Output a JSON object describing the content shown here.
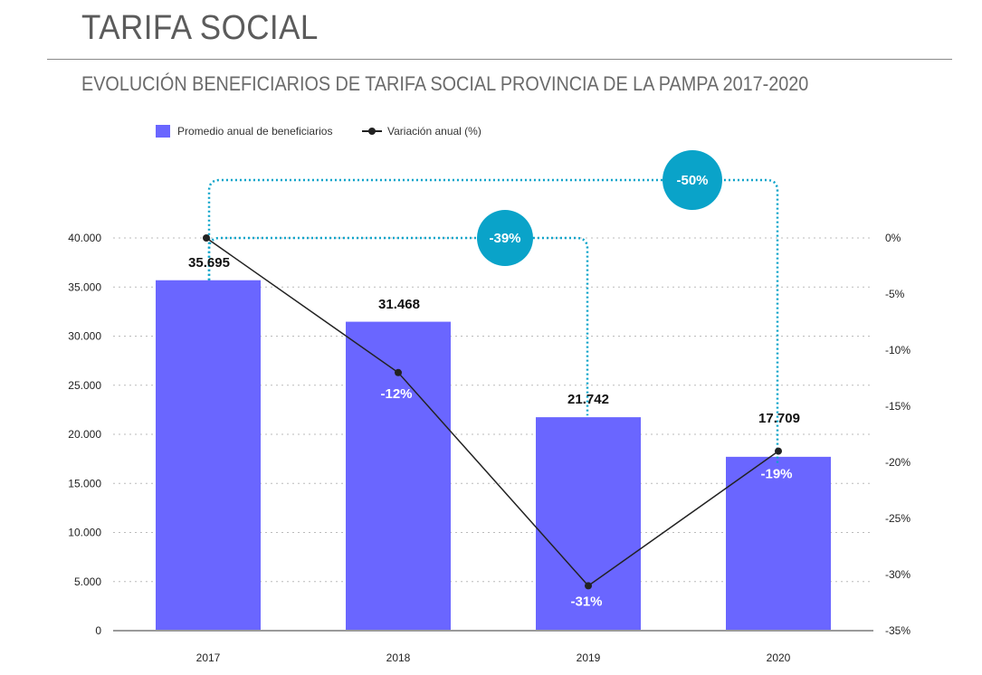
{
  "header": {
    "title": "TARIFA SOCIAL",
    "subtitle": "EVOLUCIÓN BENEFICIARIOS DE TARIFA SOCIAL PROVINCIA DE LA PAMPA 2017-2020"
  },
  "colors": {
    "bar": "#6a66ff",
    "line": "#222222",
    "bubble": "#0aa3c9",
    "grid": "#bbbbbb",
    "axis": "#9a9a9a"
  },
  "chart_data": {
    "type": "bar",
    "categories": [
      "2017",
      "2018",
      "2019",
      "2020"
    ],
    "series": [
      {
        "name": "Promedio anual de beneficiarios",
        "type": "bar",
        "axis": "left",
        "values": [
          35695,
          31468,
          21742,
          17709
        ],
        "value_labels": [
          "35.695",
          "31.468",
          "21.742",
          "17.709"
        ]
      },
      {
        "name": "Variación anual (%)",
        "type": "line",
        "axis": "right",
        "values": [
          0,
          -12,
          -31,
          -19
        ],
        "value_labels": [
          "",
          "-12%",
          "-31%",
          "-19%"
        ]
      }
    ],
    "left_axis": {
      "ylim": [
        0,
        40000
      ],
      "ticks": [
        0,
        5000,
        10000,
        15000,
        20000,
        25000,
        30000,
        35000,
        40000
      ],
      "tick_labels": [
        "0",
        "5.000",
        "10.000",
        "15.000",
        "20.000",
        "25.000",
        "30.000",
        "35.000",
        "40.000"
      ]
    },
    "right_axis": {
      "ylim": [
        -35,
        0
      ],
      "ticks": [
        0,
        -5,
        -10,
        -15,
        -20,
        -25,
        -30,
        -35
      ],
      "tick_labels": [
        "0%",
        "-5%",
        "-10%",
        "-15%",
        "-20%",
        "-25%",
        "-30%",
        "-35%"
      ]
    },
    "comparisons": [
      {
        "from": "2017",
        "to": "2019",
        "label": "-39%"
      },
      {
        "from": "2017",
        "to": "2020",
        "label": "-50%"
      }
    ],
    "grid": true,
    "legend_position": "top-left"
  }
}
